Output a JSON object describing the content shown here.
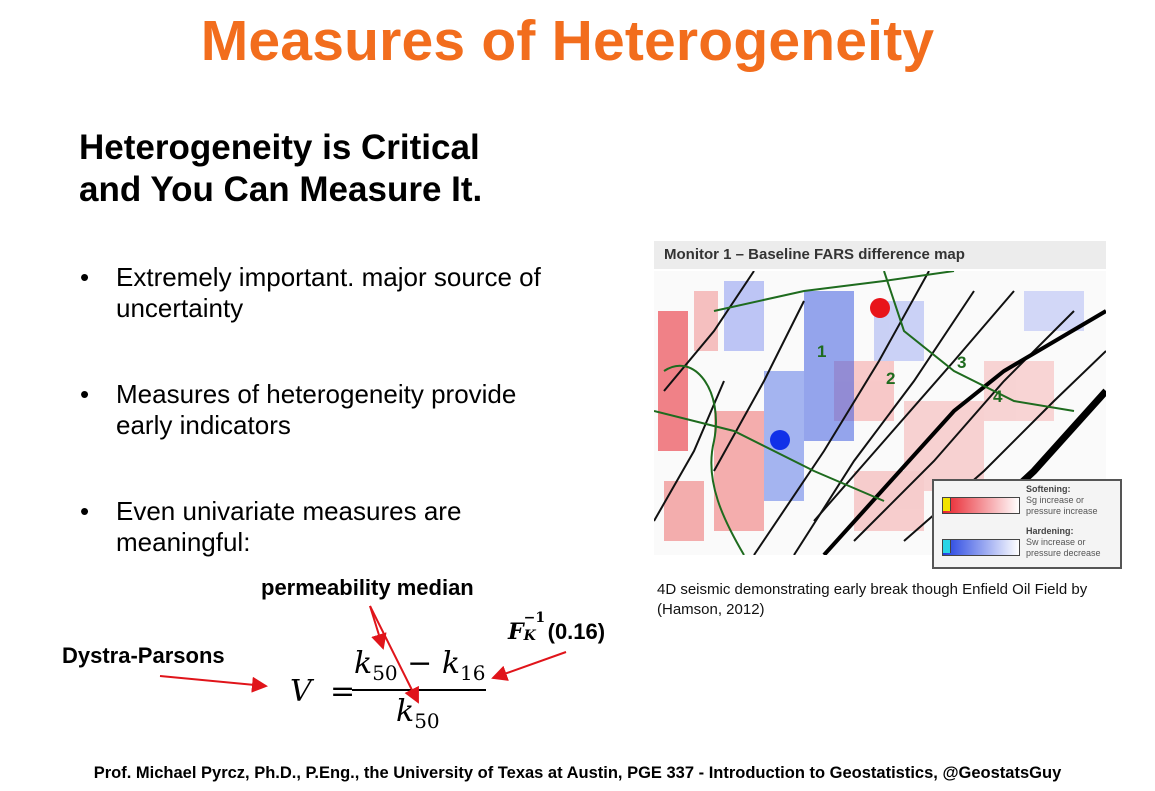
{
  "slide": {
    "title": "Measures of Heterogeneity",
    "subtitle_line1": "Heterogeneity is Critical",
    "subtitle_line2": "and You Can Measure It."
  },
  "bullets": [
    {
      "symbol": "•",
      "text": "Extremely important.  major source of uncertainty"
    },
    {
      "symbol": "•",
      "text": "Measures of heterogeneity provide early indicators"
    },
    {
      "symbol": "•",
      "text": "Even univariate measures are meaningful:"
    }
  ],
  "annotations": {
    "median": "permeability median",
    "dp": "Dystra-Parsons",
    "fk_symbol": "F",
    "fk_sup": "−1",
    "fk_sub": "K",
    "fk_arg": "(0.16)"
  },
  "formula": {
    "lhs": "V",
    "eq": "=",
    "k": "k",
    "sub50": "50",
    "minus": " − ",
    "sub16": "16"
  },
  "seismic": {
    "header": "Monitor 1 – Baseline FARS difference map",
    "zones": [
      "1",
      "2",
      "3",
      "4"
    ],
    "legend": {
      "soft_title": "Softening:",
      "soft_desc": "Sg increase or pressure increase",
      "hard_title": "Hardening:",
      "hard_desc": "Sw increase or pressure decrease"
    },
    "colors": {
      "soft": "#e8202a",
      "hard": "#1f3fe0",
      "soft_key": "#f2e300",
      "hard_key": "#29d4e6"
    }
  },
  "caption": "4D seismic demonstrating early break though Enfield Oil Field by (Hamson, 2012)",
  "footer": "Prof. Michael Pyrcz, Ph.D., P.Eng., the University of Texas at Austin, PGE 337 - Introduction to Geostatistics, @GeostatsGuy",
  "colors": {
    "title": "#f26d1d",
    "arrow": "#e0141a"
  }
}
